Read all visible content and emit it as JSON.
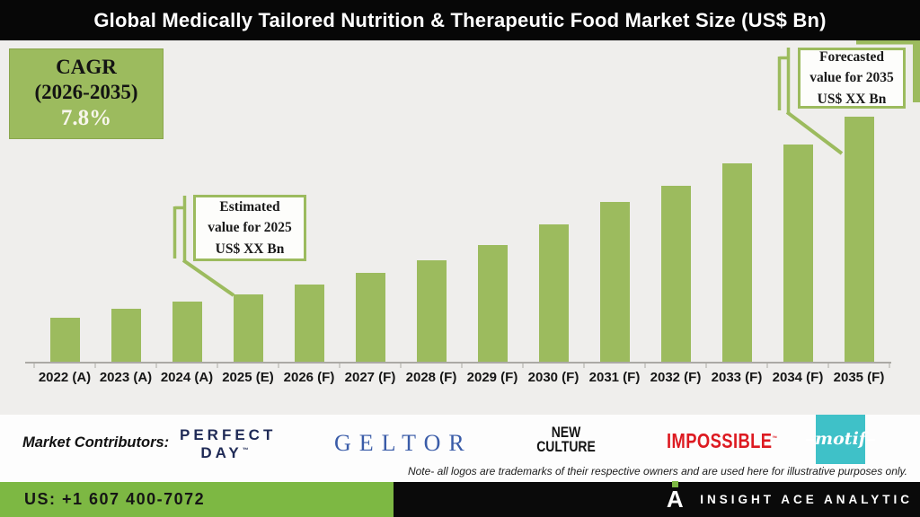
{
  "header": {
    "title": "Global Medically Tailored Nutrition & Therapeutic Food Market Size (US$ Bn)"
  },
  "cagr_box": {
    "label": "CAGR",
    "period": "(2026-2035)",
    "value": "7.8%"
  },
  "callouts": {
    "estimated": {
      "line1": "Estimated",
      "line2": "value for 2025",
      "line3": "US$ XX Bn"
    },
    "forecasted": {
      "line1": "Forecasted",
      "line2": "value for 2035",
      "line3": "US$ XX Bn"
    }
  },
  "chart_data": {
    "type": "bar",
    "title": "Global Medically Tailored Nutrition & Therapeutic Food Market Size (US$ Bn)",
    "categories": [
      "2022 (A)",
      "2023 (A)",
      "2024 (A)",
      "2025 (E)",
      "2026 (F)",
      "2027 (F)",
      "2028 (F)",
      "2029 (F)",
      "2030 (F)",
      "2031 (F)",
      "2032 (F)",
      "2033 (F)",
      "2034 (F)",
      "2035 (F)"
    ],
    "values": [
      49,
      59,
      67,
      75,
      86,
      99,
      113,
      130,
      153,
      178,
      196,
      221,
      242,
      273
    ],
    "values_unit": "relative bar height in px; actual US$ values not labeled (shown as XX Bn)",
    "series_name": "Market Size (US$ Bn)",
    "category_suffix_key": "A = Actual, E = Estimated, F = Forecast",
    "bar_color": "#9cbb5e",
    "background_color": "#efeeec",
    "xlabel": "",
    "ylabel": "",
    "y_axis_ticks": "none (value axis hidden)",
    "grid": "off",
    "legend": "none",
    "annotations": [
      "CAGR (2026-2035) 7.8%",
      "Estimated value for 2025 US$ XX Bn (points to 2025 bar)",
      "Forecasted value for 2035 US$ XX Bn (points to 2035 bar)"
    ]
  },
  "contributors": {
    "label": "Market Contributors:",
    "logos": {
      "perfect_day": {
        "line1": "PERFECT",
        "line2": "DAY",
        "tm": "™",
        "color": "#1f2a56"
      },
      "geltor": {
        "text": "GELTOR",
        "color": "#3a5ca8"
      },
      "new_culture": {
        "line1": "NEW",
        "line2": "CULTURE",
        "color": "#141414"
      },
      "impossible": {
        "text": "IMPOSSIBLE",
        "tm": "™",
        "color": "#dd1a21"
      },
      "motif": {
        "text": "motif",
        "bg_color": "#3fc1c8"
      }
    },
    "note": "Note- all logos are trademarks of their respective owners and are used here for illustrative purposes only."
  },
  "footer": {
    "phone": "US: +1 607 400-7072",
    "brand": "INSIGHT ACE ANALYTIC",
    "brand_mark": "A",
    "green_color": "#7db843"
  }
}
